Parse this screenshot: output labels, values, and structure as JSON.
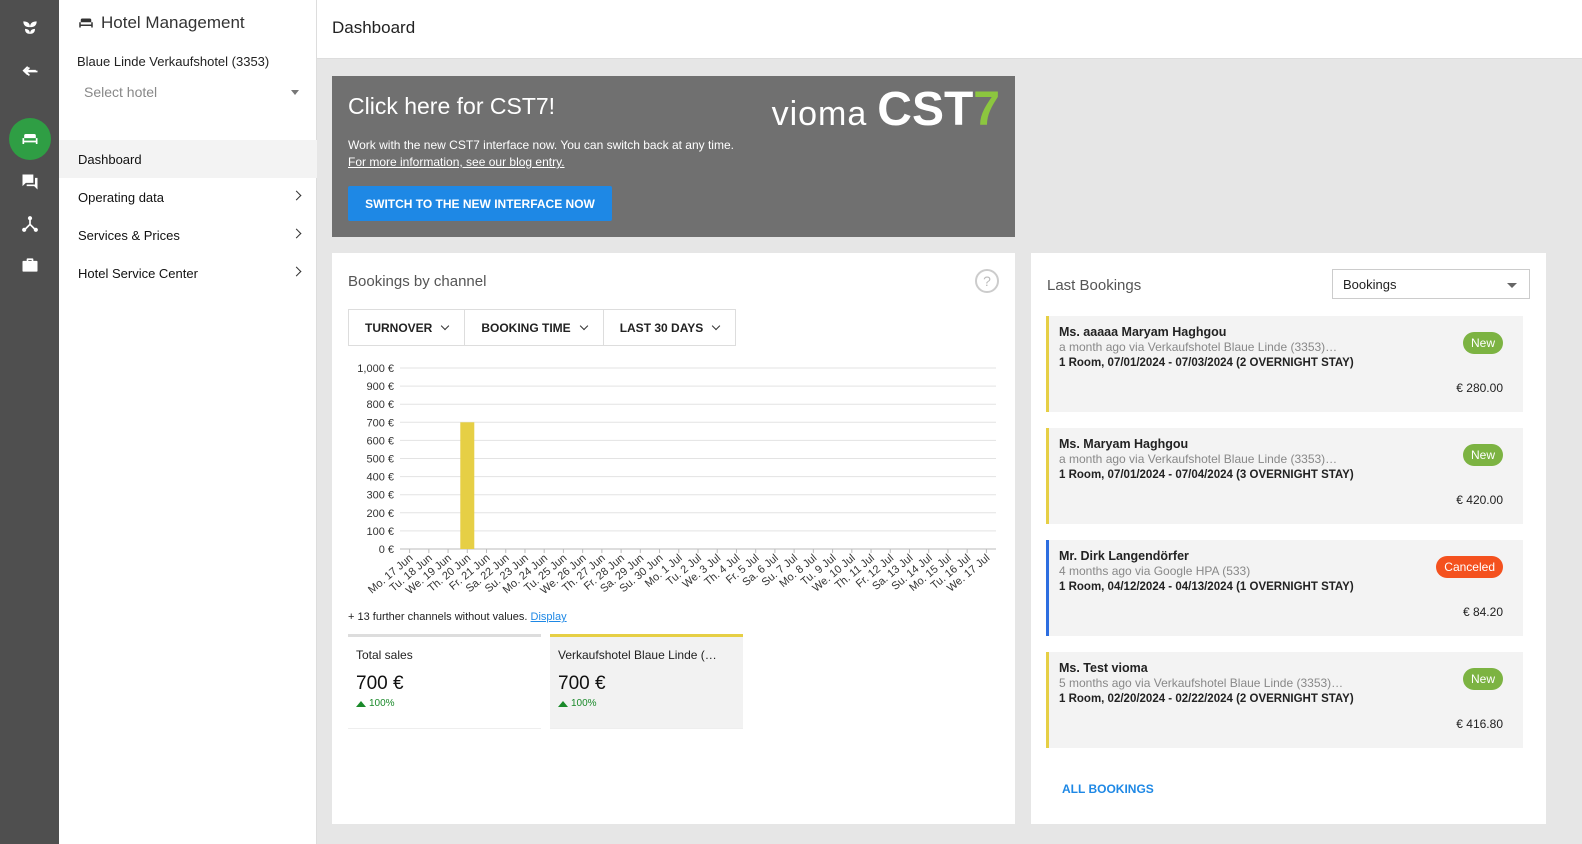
{
  "rail": {
    "icons": [
      "leaf-logo-icon",
      "switch-arrows-icon",
      "sofa-icon",
      "chat-icon",
      "network-icon",
      "briefcase-icon"
    ]
  },
  "sidebar": {
    "title": "Hotel Management",
    "hotel_name": "Blaue Linde Verkaufshotel (3353)",
    "select_placeholder": "Select hotel",
    "items": [
      {
        "label": "Dashboard"
      },
      {
        "label": "Operating data"
      },
      {
        "label": "Services & Prices"
      },
      {
        "label": "Hotel Service Center"
      }
    ]
  },
  "header": {
    "title": "Dashboard"
  },
  "promo": {
    "title": "Click here for CST7!",
    "text1": "Work with the new CST7 interface now. You can switch back at any time.",
    "text2": "For more information, see our blog entry.",
    "brand_vioma": "vioma",
    "brand_cst": "CST",
    "brand_seven": "7",
    "button": "SWITCH TO THE NEW INTERFACE NOW"
  },
  "channel_card": {
    "title": "Bookings by channel",
    "help": "?",
    "filters": [
      "TURNOVER",
      "BOOKING TIME",
      "LAST 30 DAYS"
    ],
    "note_text": "+ 13 further channels without values.",
    "note_link": "Display",
    "tiles": [
      {
        "label": "Total sales",
        "value": "700 €",
        "pct": "100%"
      },
      {
        "label": "Verkaufshotel Blaue Linde (…",
        "value": "700 €",
        "pct": "100%"
      }
    ]
  },
  "chart_data": {
    "type": "bar",
    "categories": [
      "Mo. 17 Jun",
      "Tu. 18 Jun",
      "We. 19 Jun",
      "Th. 20 Jun",
      "Fr. 21 Jun",
      "Sa. 22 Jun",
      "Su. 23 Jun",
      "Mo. 24 Jun",
      "Tu. 25 Jun",
      "We. 26 Jun",
      "Th. 27 Jun",
      "Fr. 28 Jun",
      "Sa. 29 Jun",
      "Su. 30 Jun",
      "Mo. 1 Jul",
      "Tu. 2 Jul",
      "We. 3 Jul",
      "Th. 4 Jul",
      "Fr. 5 Jul",
      "Sa. 6 Jul",
      "Su. 7 Jul",
      "Mo. 8 Jul",
      "Tu. 9 Jul",
      "We. 10 Jul",
      "Th. 11 Jul",
      "Fr. 12 Jul",
      "Sa. 13 Jul",
      "Su. 14 Jul",
      "Mo. 15 Jul",
      "Tu. 16 Jul",
      "We. 17 Jul"
    ],
    "values": [
      0,
      0,
      0,
      700,
      0,
      0,
      0,
      0,
      0,
      0,
      0,
      0,
      0,
      0,
      0,
      0,
      0,
      0,
      0,
      0,
      0,
      0,
      0,
      0,
      0,
      0,
      0,
      0,
      0,
      0,
      0
    ],
    "yticks": [
      "0 €",
      "100 €",
      "200 €",
      "300 €",
      "400 €",
      "500 €",
      "600 €",
      "700 €",
      "800 €",
      "900 €",
      "1,000 €"
    ],
    "ylim": [
      0,
      1000
    ],
    "bar_color": "#e6cf45",
    "grid": true
  },
  "bookings_card": {
    "title": "Last Bookings",
    "select_value": "Bookings",
    "items": [
      {
        "name": "Ms. aaaaa Maryam Haghgou",
        "sub": "a month ago via Verkaufshotel Blaue Linde (3353)…",
        "detail": "1 Room, 07/01/2024 - 07/03/2024 (2 OVERNIGHT STAY)",
        "price": "€ 280.00",
        "badge": "New"
      },
      {
        "name": "Ms. Maryam Haghgou",
        "sub": "a month ago via Verkaufshotel Blaue Linde (3353)…",
        "detail": "1 Room, 07/01/2024 - 07/04/2024 (3 OVERNIGHT STAY)",
        "price": "€ 420.00",
        "badge": "New"
      },
      {
        "name": "Mr. Dirk Langendörfer",
        "sub": "4 months ago via Google HPA (533)",
        "detail": "1 Room, 04/12/2024 - 04/13/2024 (1 OVERNIGHT STAY)",
        "price": "€ 84.20",
        "badge": "Canceled"
      },
      {
        "name": "Ms. Test vioma",
        "sub": "5 months ago via Verkaufshotel Blaue Linde (3353)…",
        "detail": "1 Room, 02/20/2024 - 02/22/2024 (2 OVERNIGHT STAY)",
        "price": "€ 416.80",
        "badge": "New"
      }
    ],
    "all_link": "ALL BOOKINGS"
  }
}
